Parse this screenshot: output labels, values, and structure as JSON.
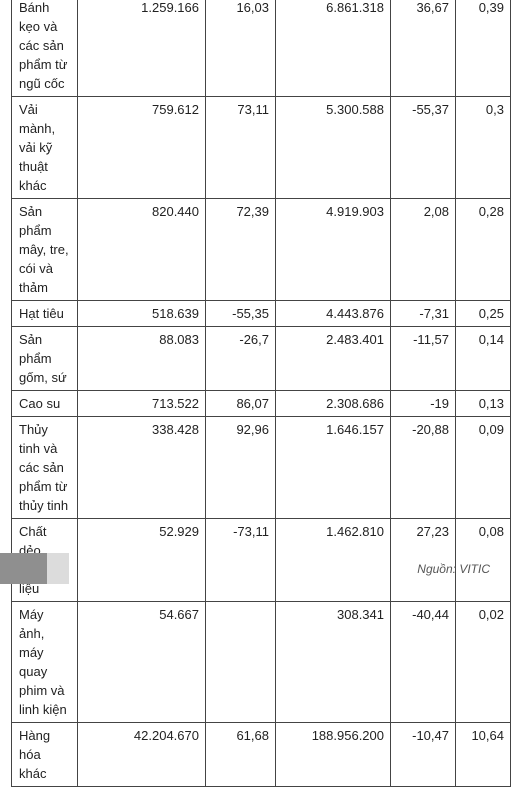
{
  "table": {
    "rows": [
      {
        "name": "Bánh kẹo và các sản phẩm từ ngũ cốc",
        "value1": "1.259.166",
        "change1": "16,03",
        "value2": "6.861.318",
        "change2": "36,67",
        "share": "0,39"
      },
      {
        "name": "Vải mành, vải kỹ thuật khác",
        "value1": "759.612",
        "change1": "73,11",
        "value2": "5.300.588",
        "change2": "-55,37",
        "share": "0,3"
      },
      {
        "name": "Sản phẩm mây, tre, cói và thảm",
        "value1": "820.440",
        "change1": "72,39",
        "value2": "4.919.903",
        "change2": "2,08",
        "share": "0,28"
      },
      {
        "name": "Hạt tiêu",
        "value1": "518.639",
        "change1": "-55,35",
        "value2": "4.443.876",
        "change2": "-7,31",
        "share": "0,25"
      },
      {
        "name": "Sản phẩm gốm, sứ",
        "value1": "88.083",
        "change1": "-26,7",
        "value2": "2.483.401",
        "change2": "-11,57",
        "share": "0,14"
      },
      {
        "name": "Cao su",
        "value1": "713.522",
        "change1": "86,07",
        "value2": "2.308.686",
        "change2": "-19",
        "share": "0,13"
      },
      {
        "name": "Thủy tinh và các sản phẩm từ thủy tinh",
        "value1": "338.428",
        "change1": "92,96",
        "value2": "1.646.157",
        "change2": "-20,88",
        "share": "0,09"
      },
      {
        "name": "Chất dẻo nguyên liệu",
        "value1": "52.929",
        "change1": "-73,11",
        "value2": "1.462.810",
        "change2": "27,23",
        "share": "0,08"
      },
      {
        "name": "Máy ảnh, máy quay phim và linh kiện",
        "value1": "54.667",
        "change1": "",
        "value2": "308.341",
        "change2": "-40,44",
        "share": "0,02"
      },
      {
        "name": "Hàng hóa khác",
        "value1": "42.204.670",
        "change1": "61,68",
        "value2": "188.956.200",
        "change2": "-10,47",
        "share": "10,64"
      }
    ]
  },
  "footer": {
    "source": "Nguồn: VITIC"
  }
}
